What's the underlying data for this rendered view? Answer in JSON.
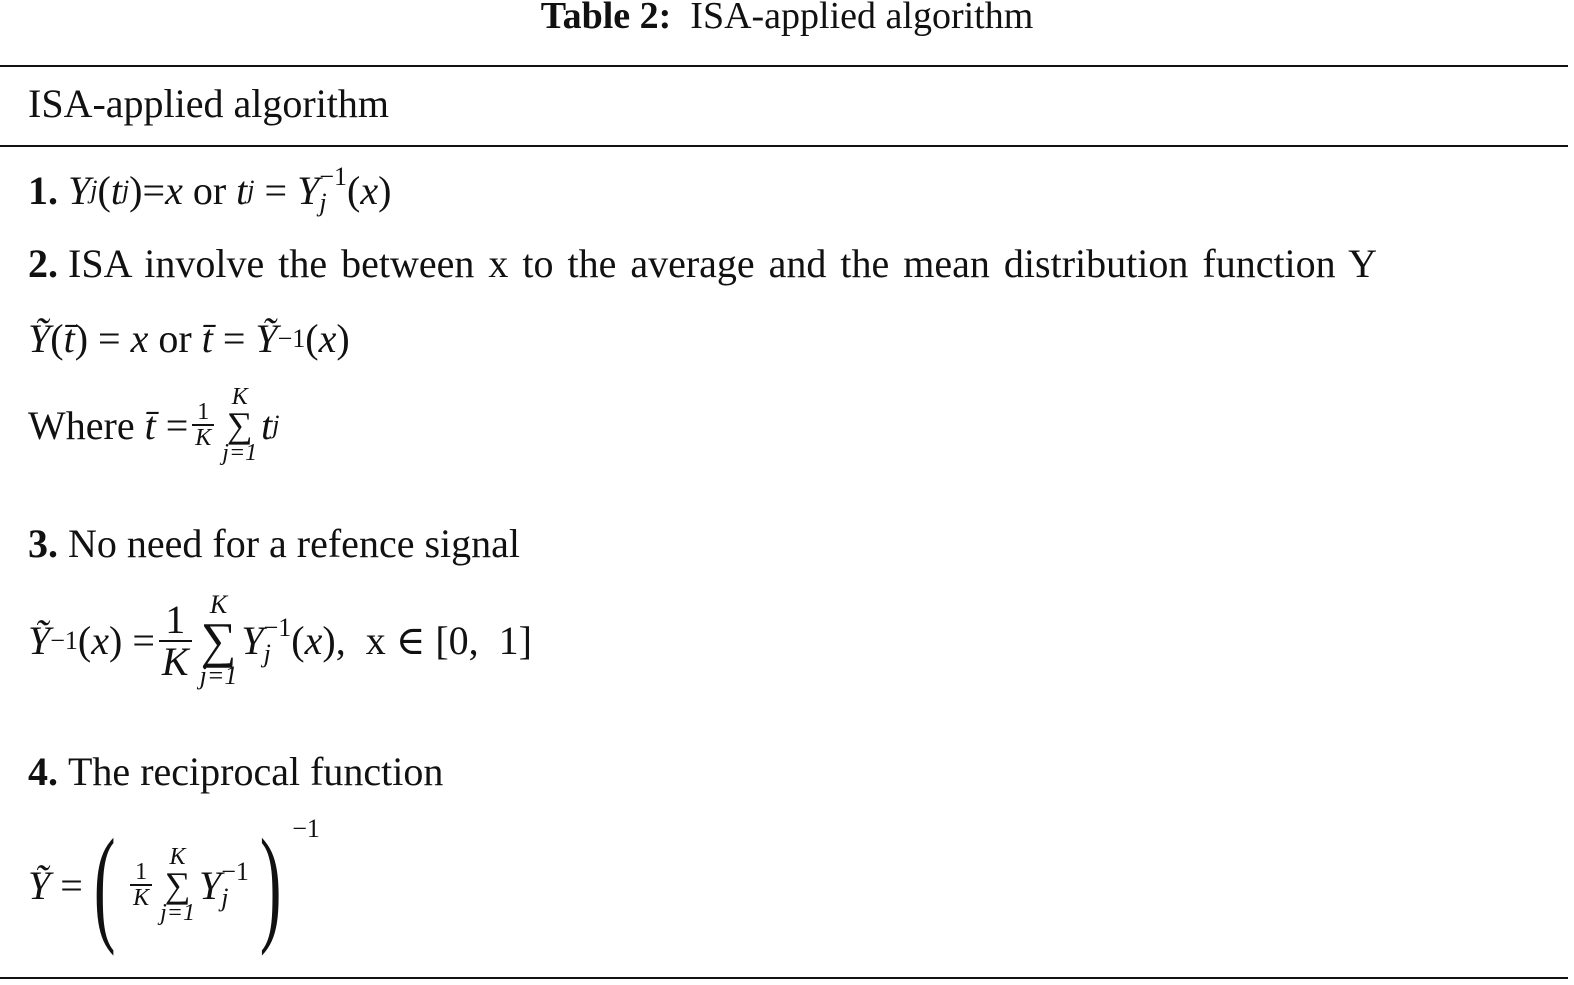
{
  "title": {
    "label": "Table 2:",
    "text": "ISA-applied algorithm"
  },
  "header": "ISA-applied algorithm",
  "steps": [
    {
      "num": "1.",
      "formula": {
        "Y": "Y",
        "j": "j",
        "t": "t",
        "x": "x",
        "or": "or",
        "eq": "=",
        "inv": "−1"
      }
    },
    {
      "num": "2.",
      "text": "ISA involve the between x to the average and the mean distribution function Y",
      "formula": {
        "Yt": "Ỹ",
        "tbar": "t̄",
        "x": "x",
        "or": "or",
        "eq": "=",
        "inv": "−1"
      },
      "where": {
        "label": "Where",
        "one": "1",
        "K": "K",
        "j1": "j=1",
        "t": "t",
        "j": "j",
        "sigma": "∑"
      }
    },
    {
      "num": "3.",
      "text": "No need for a refence signal",
      "formula": {
        "domain": "x ∈ [0,  1]"
      }
    },
    {
      "num": "4.",
      "text": "The reciprocal function"
    }
  ]
}
